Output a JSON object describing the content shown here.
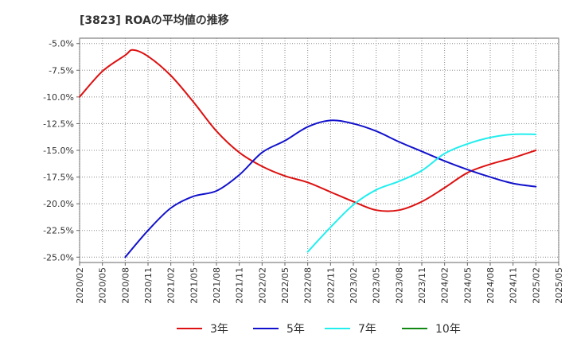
{
  "chart_data": {
    "type": "line",
    "title": "[3823]  ROAの平均値の推移",
    "xlabel": "",
    "ylabel": "",
    "ylim": [
      -25.5,
      -4.5
    ],
    "y_ticks": [
      -5,
      -7.5,
      -10,
      -12.5,
      -15,
      -17.5,
      -20,
      -22.5,
      -25
    ],
    "y_tick_labels": [
      "-5.0%",
      "-7.5%",
      "-10.0%",
      "-12.5%",
      "-15.0%",
      "-17.5%",
      "-20.0%",
      "-22.5%",
      "-25.0%"
    ],
    "x_ticks": [
      "2020/02",
      "2020/05",
      "2020/08",
      "2020/11",
      "2021/02",
      "2021/05",
      "2021/08",
      "2021/11",
      "2022/02",
      "2022/05",
      "2022/08",
      "2022/11",
      "2023/02",
      "2023/05",
      "2023/08",
      "2023/11",
      "2024/02",
      "2024/05",
      "2024/08",
      "2024/11",
      "2025/02",
      "2025/05"
    ],
    "grid": true,
    "legend_position": "bottom",
    "series": [
      {
        "name": "3年",
        "color": "#dd1111",
        "values": [
          [
            "2020/02",
            -10.0
          ],
          [
            "2020/05",
            -7.6
          ],
          [
            "2020/08",
            -6.1
          ],
          [
            "2020/09",
            -5.6
          ],
          [
            "2020/11",
            -6.2
          ],
          [
            "2021/02",
            -8.0
          ],
          [
            "2021/05",
            -10.5
          ],
          [
            "2021/08",
            -13.2
          ],
          [
            "2021/11",
            -15.2
          ],
          [
            "2022/02",
            -16.5
          ],
          [
            "2022/05",
            -17.4
          ],
          [
            "2022/08",
            -18.0
          ],
          [
            "2022/11",
            -18.9
          ],
          [
            "2023/02",
            -19.8
          ],
          [
            "2023/05",
            -20.6
          ],
          [
            "2023/08",
            -20.6
          ],
          [
            "2023/11",
            -19.8
          ],
          [
            "2024/02",
            -18.5
          ],
          [
            "2024/05",
            -17.1
          ],
          [
            "2024/08",
            -16.3
          ],
          [
            "2024/11",
            -15.7
          ],
          [
            "2025/02",
            -15.0
          ]
        ]
      },
      {
        "name": "5年",
        "color": "#1111cc",
        "values": [
          [
            "2020/08",
            -25.0
          ],
          [
            "2020/11",
            -22.5
          ],
          [
            "2021/02",
            -20.4
          ],
          [
            "2021/05",
            -19.3
          ],
          [
            "2021/08",
            -18.8
          ],
          [
            "2021/11",
            -17.3
          ],
          [
            "2022/02",
            -15.2
          ],
          [
            "2022/05",
            -14.1
          ],
          [
            "2022/08",
            -12.8
          ],
          [
            "2022/11",
            -12.2
          ],
          [
            "2023/02",
            -12.5
          ],
          [
            "2023/05",
            -13.2
          ],
          [
            "2023/08",
            -14.2
          ],
          [
            "2023/11",
            -15.1
          ],
          [
            "2024/02",
            -16.0
          ],
          [
            "2024/05",
            -16.8
          ],
          [
            "2024/08",
            -17.5
          ],
          [
            "2024/11",
            -18.1
          ],
          [
            "2025/02",
            -18.4
          ]
        ]
      },
      {
        "name": "7年",
        "color": "#22eeee",
        "values": [
          [
            "2022/08",
            -24.5
          ],
          [
            "2022/11",
            -22.2
          ],
          [
            "2023/02",
            -20.1
          ],
          [
            "2023/05",
            -18.7
          ],
          [
            "2023/08",
            -17.9
          ],
          [
            "2023/11",
            -16.9
          ],
          [
            "2024/02",
            -15.3
          ],
          [
            "2024/05",
            -14.4
          ],
          [
            "2024/08",
            -13.8
          ],
          [
            "2024/11",
            -13.5
          ],
          [
            "2025/02",
            -13.5
          ]
        ]
      },
      {
        "name": "10年",
        "color": "#118811",
        "values": []
      }
    ]
  }
}
